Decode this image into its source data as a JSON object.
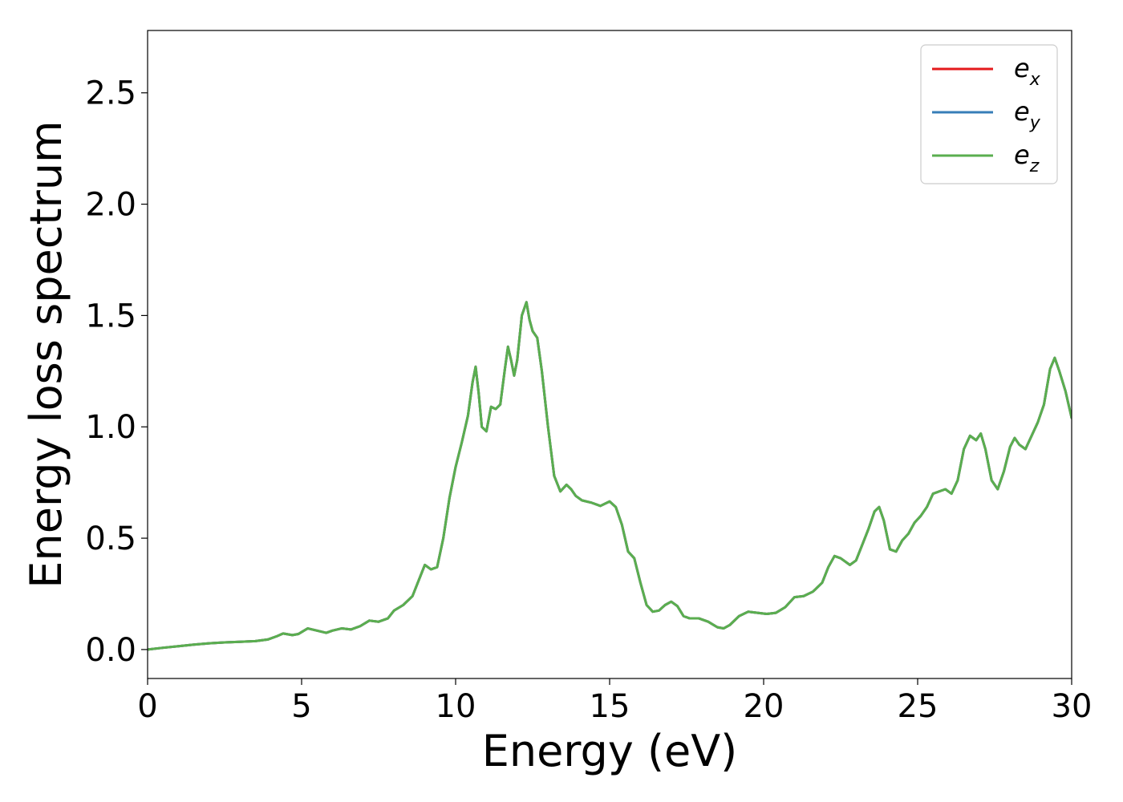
{
  "chart_data": {
    "type": "line",
    "xlabel": "Energy (eV)",
    "ylabel": "Energy loss spectrum",
    "xlim": [
      0,
      30
    ],
    "ylim": [
      -0.13,
      2.78
    ],
    "xticks": [
      0,
      5,
      10,
      15,
      20,
      25,
      30
    ],
    "xtick_labels": [
      "0",
      "5",
      "10",
      "15",
      "20",
      "25",
      "30"
    ],
    "yticks": [
      0.0,
      0.5,
      1.0,
      1.5,
      2.0,
      2.5
    ],
    "ytick_labels": [
      "0.0",
      "0.5",
      "1.0",
      "1.5",
      "2.0",
      "2.5"
    ],
    "grid": false,
    "legend_position": "top-right",
    "x": [
      0,
      0.5,
      1.0,
      1.5,
      2.0,
      2.5,
      3.0,
      3.5,
      3.9,
      4.2,
      4.4,
      4.7,
      4.9,
      5.2,
      5.5,
      5.8,
      6.0,
      6.3,
      6.6,
      6.9,
      7.2,
      7.5,
      7.8,
      8.0,
      8.3,
      8.6,
      8.8,
      9.0,
      9.2,
      9.4,
      9.6,
      9.8,
      10.0,
      10.2,
      10.4,
      10.55,
      10.65,
      10.75,
      10.85,
      11.0,
      11.15,
      11.3,
      11.45,
      11.6,
      11.7,
      11.8,
      11.9,
      12.0,
      12.15,
      12.3,
      12.4,
      12.5,
      12.65,
      12.8,
      13.0,
      13.2,
      13.4,
      13.6,
      13.75,
      13.9,
      14.1,
      14.4,
      14.7,
      15.0,
      15.2,
      15.4,
      15.6,
      15.8,
      16.0,
      16.2,
      16.4,
      16.6,
      16.8,
      17.0,
      17.2,
      17.4,
      17.6,
      17.9,
      18.2,
      18.5,
      18.7,
      18.9,
      19.2,
      19.5,
      19.8,
      20.1,
      20.4,
      20.7,
      21.0,
      21.3,
      21.6,
      21.9,
      22.1,
      22.3,
      22.5,
      22.8,
      23.0,
      23.2,
      23.4,
      23.6,
      23.75,
      23.9,
      24.1,
      24.3,
      24.5,
      24.7,
      24.9,
      25.1,
      25.3,
      25.5,
      25.7,
      25.9,
      26.1,
      26.3,
      26.5,
      26.7,
      26.9,
      27.05,
      27.2,
      27.4,
      27.6,
      27.8,
      28.0,
      28.15,
      28.3,
      28.5,
      28.7,
      28.9,
      29.1,
      29.3,
      29.45,
      29.6,
      29.8,
      30.0
    ],
    "series": [
      {
        "name": "e_x",
        "color": "#e41a1c",
        "values": [
          0.0,
          0.008,
          0.015,
          0.022,
          0.028,
          0.032,
          0.035,
          0.038,
          0.045,
          0.06,
          0.072,
          0.065,
          0.07,
          0.095,
          0.085,
          0.075,
          0.085,
          0.095,
          0.09,
          0.105,
          0.13,
          0.125,
          0.14,
          0.175,
          0.2,
          0.24,
          0.31,
          0.38,
          0.36,
          0.37,
          0.5,
          0.68,
          0.82,
          0.93,
          1.05,
          1.2,
          1.27,
          1.15,
          1.0,
          0.98,
          1.09,
          1.08,
          1.1,
          1.26,
          1.36,
          1.3,
          1.23,
          1.3,
          1.5,
          1.56,
          1.48,
          1.43,
          1.4,
          1.25,
          1.0,
          0.78,
          0.71,
          0.74,
          0.72,
          0.69,
          0.67,
          0.66,
          0.645,
          0.665,
          0.64,
          0.56,
          0.44,
          0.41,
          0.3,
          0.2,
          0.17,
          0.175,
          0.2,
          0.215,
          0.195,
          0.15,
          0.14,
          0.14,
          0.125,
          0.1,
          0.095,
          0.11,
          0.15,
          0.17,
          0.165,
          0.16,
          0.165,
          0.19,
          0.235,
          0.24,
          0.26,
          0.3,
          0.37,
          0.42,
          0.41,
          0.38,
          0.4,
          0.47,
          0.54,
          0.62,
          0.64,
          0.58,
          0.45,
          0.44,
          0.49,
          0.52,
          0.57,
          0.6,
          0.64,
          0.7,
          0.71,
          0.72,
          0.7,
          0.76,
          0.9,
          0.96,
          0.94,
          0.97,
          0.9,
          0.76,
          0.72,
          0.8,
          0.91,
          0.95,
          0.92,
          0.9,
          0.96,
          1.02,
          1.1,
          1.26,
          1.31,
          1.25,
          1.16,
          1.04
        ]
      },
      {
        "name": "e_y",
        "color": "#377eb8",
        "values": [
          0.0,
          0.008,
          0.015,
          0.022,
          0.028,
          0.032,
          0.035,
          0.038,
          0.045,
          0.06,
          0.072,
          0.065,
          0.07,
          0.095,
          0.085,
          0.075,
          0.085,
          0.095,
          0.09,
          0.105,
          0.13,
          0.125,
          0.14,
          0.175,
          0.2,
          0.24,
          0.31,
          0.38,
          0.36,
          0.37,
          0.5,
          0.68,
          0.82,
          0.93,
          1.05,
          1.2,
          1.27,
          1.15,
          1.0,
          0.98,
          1.09,
          1.08,
          1.1,
          1.26,
          1.36,
          1.3,
          1.23,
          1.3,
          1.5,
          1.56,
          1.48,
          1.43,
          1.4,
          1.25,
          1.0,
          0.78,
          0.71,
          0.74,
          0.72,
          0.69,
          0.67,
          0.66,
          0.645,
          0.665,
          0.64,
          0.56,
          0.44,
          0.41,
          0.3,
          0.2,
          0.17,
          0.175,
          0.2,
          0.215,
          0.195,
          0.15,
          0.14,
          0.14,
          0.125,
          0.1,
          0.095,
          0.11,
          0.15,
          0.17,
          0.165,
          0.16,
          0.165,
          0.19,
          0.235,
          0.24,
          0.26,
          0.3,
          0.37,
          0.42,
          0.41,
          0.38,
          0.4,
          0.47,
          0.54,
          0.62,
          0.64,
          0.58,
          0.45,
          0.44,
          0.49,
          0.52,
          0.57,
          0.6,
          0.64,
          0.7,
          0.71,
          0.72,
          0.7,
          0.76,
          0.9,
          0.96,
          0.94,
          0.97,
          0.9,
          0.76,
          0.72,
          0.8,
          0.91,
          0.95,
          0.92,
          0.9,
          0.96,
          1.02,
          1.1,
          1.26,
          1.31,
          1.25,
          1.16,
          1.04
        ]
      },
      {
        "name": "e_z",
        "color": "#5aae4f",
        "values": [
          0.0,
          0.008,
          0.015,
          0.022,
          0.028,
          0.032,
          0.035,
          0.038,
          0.045,
          0.06,
          0.072,
          0.065,
          0.07,
          0.095,
          0.085,
          0.075,
          0.085,
          0.095,
          0.09,
          0.105,
          0.13,
          0.125,
          0.14,
          0.175,
          0.2,
          0.24,
          0.31,
          0.38,
          0.36,
          0.37,
          0.5,
          0.68,
          0.82,
          0.93,
          1.05,
          1.2,
          1.27,
          1.15,
          1.0,
          0.98,
          1.09,
          1.08,
          1.1,
          1.26,
          1.36,
          1.3,
          1.23,
          1.3,
          1.5,
          1.56,
          1.48,
          1.43,
          1.4,
          1.25,
          1.0,
          0.78,
          0.71,
          0.74,
          0.72,
          0.69,
          0.67,
          0.66,
          0.645,
          0.665,
          0.64,
          0.56,
          0.44,
          0.41,
          0.3,
          0.2,
          0.17,
          0.175,
          0.2,
          0.215,
          0.195,
          0.15,
          0.14,
          0.14,
          0.125,
          0.1,
          0.095,
          0.11,
          0.15,
          0.17,
          0.165,
          0.16,
          0.165,
          0.19,
          0.235,
          0.24,
          0.26,
          0.3,
          0.37,
          0.42,
          0.41,
          0.38,
          0.4,
          0.47,
          0.54,
          0.62,
          0.64,
          0.58,
          0.45,
          0.44,
          0.49,
          0.52,
          0.57,
          0.6,
          0.64,
          0.7,
          0.71,
          0.72,
          0.7,
          0.76,
          0.9,
          0.96,
          0.94,
          0.97,
          0.9,
          0.76,
          0.72,
          0.8,
          0.91,
          0.95,
          0.92,
          0.9,
          0.96,
          1.02,
          1.1,
          1.26,
          1.31,
          1.25,
          1.16,
          1.04
        ]
      }
    ],
    "legend": [
      {
        "base": "e",
        "sub": "x",
        "color": "#e41a1c"
      },
      {
        "base": "e",
        "sub": "y",
        "color": "#377eb8"
      },
      {
        "base": "e",
        "sub": "z",
        "color": "#5aae4f"
      }
    ]
  }
}
